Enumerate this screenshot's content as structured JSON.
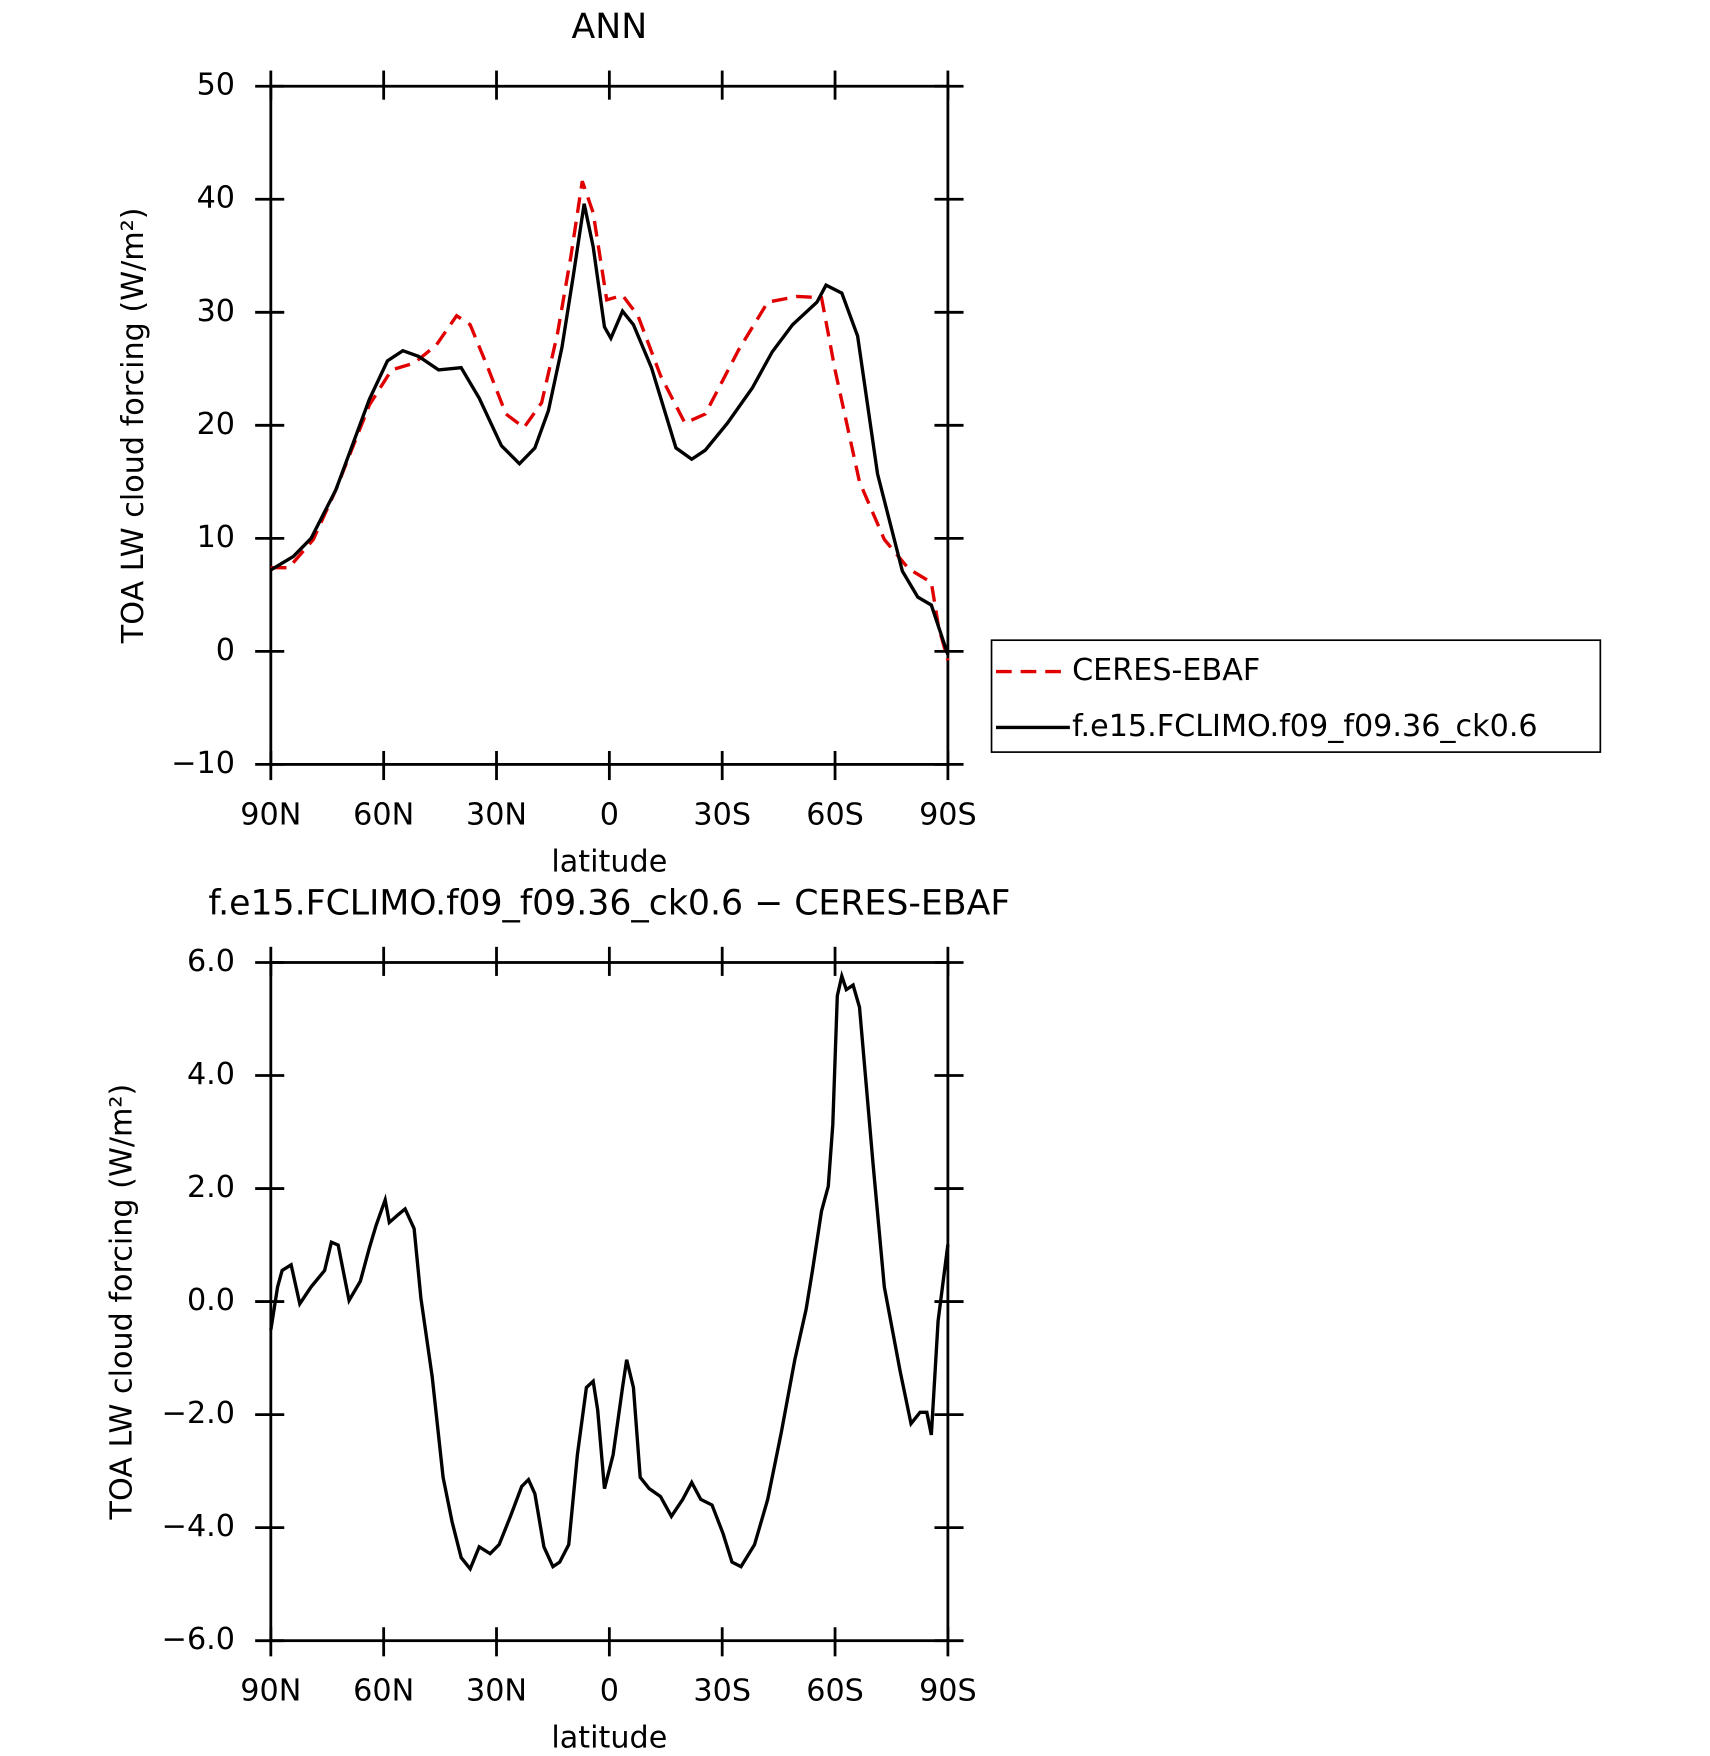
{
  "chart_data": [
    {
      "type": "line",
      "title": "ANN",
      "x_label": "latitude",
      "y_label": "TOA LW cloud forcing (W/m²)",
      "xlim": [
        90,
        -90
      ],
      "ylim": [
        -10,
        50
      ],
      "xticks": [
        {
          "value": 90,
          "label": "90N"
        },
        {
          "value": 60,
          "label": "60N"
        },
        {
          "value": 30,
          "label": "30N"
        },
        0,
        {
          "value": -30,
          "label": "30S"
        },
        {
          "value": -60,
          "label": "60S"
        },
        {
          "value": -90,
          "label": "90S"
        }
      ],
      "yticks": [
        {
          "value": -10,
          "label": "−10"
        },
        0,
        10,
        20,
        30,
        40,
        50
      ],
      "legend": "right",
      "series": [
        {
          "name": "CERES-EBAF",
          "color": "#e00000",
          "line_style": "dashed",
          "x": [
            90,
            85.2,
            78.7,
            72.7,
            63.8,
            57.9,
            51.9,
            46,
            40.6,
            37,
            32.3,
            27.5,
            22.7,
            18,
            13.8,
            10.2,
            7.2,
            4.3,
            0.7,
            -3.5,
            -7.6,
            -13.6,
            -20.1,
            -25.5,
            -34.4,
            -42.1,
            -49.9,
            -56.4,
            -60,
            -66.5,
            -73.1,
            -79.6,
            -85.6,
            -87.5,
            -90
          ],
          "values": [
            7.4,
            7.4,
            9.9,
            14.3,
            21.8,
            24.9,
            25.5,
            27.1,
            29.7,
            28.9,
            25.1,
            21,
            19.8,
            22,
            28.1,
            35,
            41.6,
            38.8,
            31.1,
            31.5,
            29.7,
            24.4,
            20.2,
            21,
            26.7,
            30.9,
            31.4,
            31.3,
            24.9,
            15,
            9.9,
            7.3,
            6.1,
            2.2,
            -0.8
          ]
        },
        {
          "name": "f.e15.FCLIMO.f09_f09.36_ck0.6",
          "color": "#000000",
          "line_style": "solid",
          "x": [
            90,
            84,
            79.3,
            72.7,
            63.8,
            59,
            54.9,
            50.7,
            45.4,
            39.4,
            34.6,
            28.7,
            23.9,
            19.8,
            16.2,
            12.6,
            9.6,
            6.7,
            4.3,
            1.3,
            -0.4,
            -3.5,
            -6.4,
            -11.2,
            -17.7,
            -21.9,
            -25.5,
            -31.4,
            -38,
            -43.3,
            -48.7,
            -55.2,
            -57.6,
            -61.8,
            -66,
            -71.3,
            -77.9,
            -82,
            -85.6,
            -90
          ],
          "values": [
            7.2,
            8.4,
            10,
            14.3,
            22.3,
            25.7,
            26.6,
            26.1,
            24.9,
            25.1,
            22.4,
            18.2,
            16.6,
            18,
            21.3,
            26.9,
            33.2,
            39.6,
            35.8,
            28.7,
            27.7,
            30.1,
            28.9,
            25.1,
            18,
            17,
            17.8,
            20.2,
            23.3,
            26.5,
            28.9,
            30.9,
            32.4,
            31.7,
            27.9,
            15.7,
            7.1,
            4.8,
            4.1,
            -0.3
          ]
        }
      ]
    },
    {
      "type": "line",
      "title": "f.e15.FCLIMO.f09_f09.36_ck0.6 − CERES-EBAF",
      "x_label": "latitude",
      "y_label": "TOA LW cloud forcing (W/m²)",
      "xlim": [
        90,
        -90
      ],
      "ylim": [
        -6,
        6
      ],
      "xticks": [
        {
          "value": 90,
          "label": "90N"
        },
        {
          "value": 60,
          "label": "60N"
        },
        {
          "value": 30,
          "label": "30N"
        },
        0,
        {
          "value": -30,
          "label": "30S"
        },
        {
          "value": -60,
          "label": "60S"
        },
        {
          "value": -90,
          "label": "90S"
        }
      ],
      "yticks": [
        {
          "value": -6,
          "label": "−6.0"
        },
        {
          "value": -4,
          "label": "−4.0"
        },
        {
          "value": -2,
          "label": "−2.0"
        },
        {
          "value": 0,
          "label": "0.0"
        },
        {
          "value": 2,
          "label": "2.0"
        },
        {
          "value": 4,
          "label": "4.0"
        },
        {
          "value": 6,
          "label": "6.0"
        }
      ],
      "series": [
        {
          "color": "#000000",
          "line_style": "solid",
          "x": [
            90,
            88.2,
            87,
            84.6,
            82.3,
            79.3,
            75.7,
            73.9,
            72.1,
            69.2,
            66.2,
            63.8,
            62,
            59.6,
            58.5,
            56.1,
            54.3,
            51.9,
            50.1,
            47.1,
            44.2,
            41.8,
            39.4,
            37,
            34.6,
            31.7,
            29.3,
            26.3,
            23.3,
            21.5,
            19.8,
            17.4,
            15,
            13.2,
            10.8,
            8.5,
            6.1,
            4.3,
            3.1,
            1.3,
            -1,
            -3.5,
            -4.6,
            -6.4,
            -8.2,
            -10.6,
            -13.6,
            -16.5,
            -19.5,
            -21.9,
            -24.3,
            -27.3,
            -30.2,
            -32.6,
            -35,
            -38.6,
            -42.1,
            -45.7,
            -49.3,
            -52.3,
            -54,
            -56.4,
            -58.2,
            -59.4,
            -60.6,
            -61.8,
            -63,
            -64.8,
            -66.5,
            -70.1,
            -73.1,
            -77.3,
            -80.2,
            -82.6,
            -84.4,
            -85.6,
            -87.4,
            -90
          ],
          "values": [
            -0.5,
            0.26,
            0.55,
            0.65,
            -0.04,
            0.26,
            0.55,
            1.05,
            1.0,
            0.02,
            0.36,
            0.95,
            1.35,
            1.8,
            1.4,
            1.54,
            1.64,
            1.29,
            0.06,
            -1.33,
            -3.11,
            -3.9,
            -4.53,
            -4.73,
            -4.34,
            -4.46,
            -4.3,
            -3.8,
            -3.27,
            -3.15,
            -3.4,
            -4.34,
            -4.69,
            -4.61,
            -4.3,
            -2.71,
            -1.52,
            -1.41,
            -1.92,
            -3.31,
            -2.71,
            -1.52,
            -1.03,
            -1.52,
            -3.11,
            -3.31,
            -3.45,
            -3.8,
            -3.5,
            -3.2,
            -3.5,
            -3.6,
            -4.1,
            -4.61,
            -4.69,
            -4.3,
            -3.5,
            -2.32,
            -1.03,
            -0.14,
            0.55,
            1.6,
            2.04,
            3.13,
            5.41,
            5.76,
            5.52,
            5.6,
            5.21,
            2.44,
            0.26,
            -1.23,
            -2.16,
            -1.96,
            -1.96,
            -2.36,
            -0.34,
            1.01
          ]
        }
      ]
    }
  ]
}
